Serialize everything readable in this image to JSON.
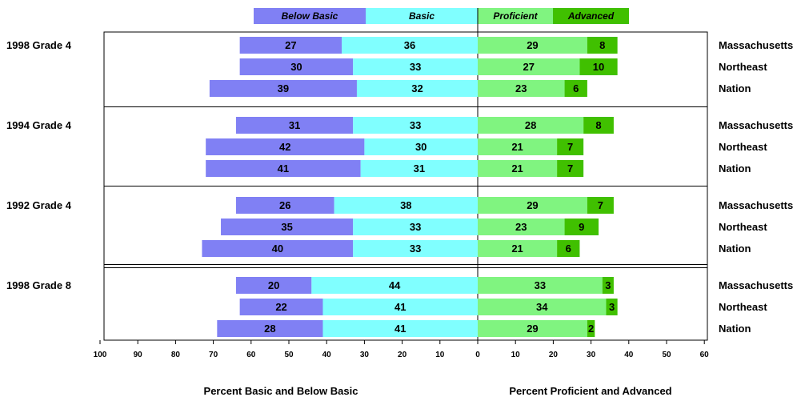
{
  "chart_data": {
    "type": "bar",
    "subtype": "diverging-stacked",
    "title": "",
    "legend": {
      "placement": "top-center",
      "items": [
        {
          "key": "below_basic",
          "label": "Below Basic",
          "color": "#8080f4"
        },
        {
          "key": "basic",
          "label": "Basic",
          "color": "#80ffff"
        },
        {
          "key": "proficient",
          "label": "Proficient",
          "color": "#80f480"
        },
        {
          "key": "advanced",
          "label": "Advanced",
          "color": "#40c000"
        }
      ]
    },
    "xlabel_left": "Percent Basic and Below Basic",
    "xlabel_right": "Percent Proficient and Advanced",
    "xlim": [
      -100,
      60
    ],
    "ticks": [
      "100",
      "90",
      "80",
      "70",
      "60",
      "50",
      "40",
      "30",
      "20",
      "10",
      "0",
      "10",
      "20",
      "30",
      "40",
      "50",
      "60"
    ],
    "grid": false,
    "groups": [
      {
        "label": "1998 Grade 4",
        "rows": [
          {
            "name": "Massachusetts",
            "below_basic": 27,
            "basic": 36,
            "proficient": 29,
            "advanced": 8
          },
          {
            "name": "Northeast",
            "below_basic": 30,
            "basic": 33,
            "proficient": 27,
            "advanced": 10
          },
          {
            "name": "Nation",
            "below_basic": 39,
            "basic": 32,
            "proficient": 23,
            "advanced": 6
          }
        ]
      },
      {
        "label": "1994 Grade 4",
        "rows": [
          {
            "name": "Massachusetts",
            "below_basic": 31,
            "basic": 33,
            "proficient": 28,
            "advanced": 8
          },
          {
            "name": "Northeast",
            "below_basic": 42,
            "basic": 30,
            "proficient": 21,
            "advanced": 7
          },
          {
            "name": "Nation",
            "below_basic": 41,
            "basic": 31,
            "proficient": 21,
            "advanced": 7
          }
        ]
      },
      {
        "label": "1992 Grade 4",
        "rows": [
          {
            "name": "Massachusetts",
            "below_basic": 26,
            "basic": 38,
            "proficient": 29,
            "advanced": 7
          },
          {
            "name": "Northeast",
            "below_basic": 35,
            "basic": 33,
            "proficient": 23,
            "advanced": 9
          },
          {
            "name": "Nation",
            "below_basic": 40,
            "basic": 33,
            "proficient": 21,
            "advanced": 6
          }
        ]
      },
      {
        "label": "1998 Grade 8",
        "rows": [
          {
            "name": "Massachusetts",
            "below_basic": 20,
            "basic": 44,
            "proficient": 33,
            "advanced": 3
          },
          {
            "name": "Northeast",
            "below_basic": 22,
            "basic": 41,
            "proficient": 34,
            "advanced": 3
          },
          {
            "name": "Nation",
            "below_basic": 28,
            "basic": 41,
            "proficient": 29,
            "advanced": 2
          }
        ]
      }
    ]
  }
}
